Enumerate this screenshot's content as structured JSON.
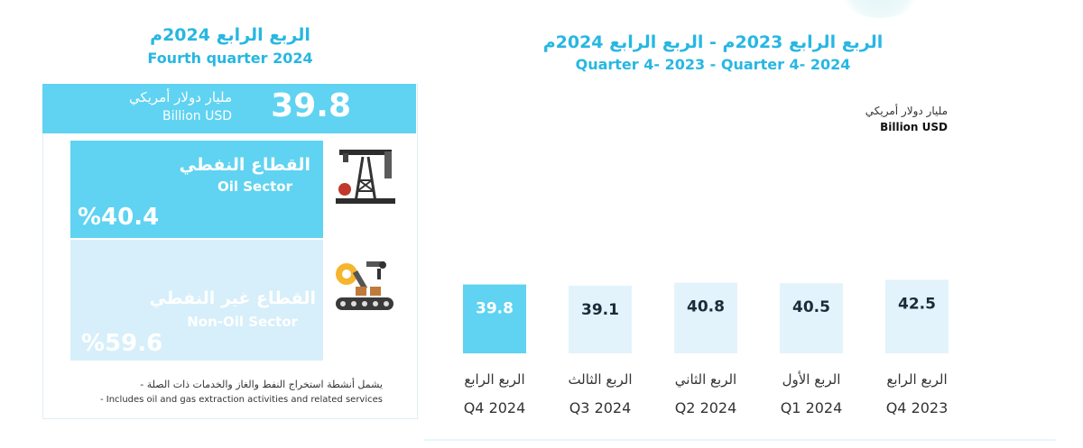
{
  "left_panel": {
    "title_ar": "الربع الرابع 2024م",
    "title_en": "Fourth quarter 2024",
    "total_value": "39.8",
    "total_unit_ar": "مليار دولار أمريكي",
    "total_unit_en": "Billion USD",
    "oil_ar": "القطاع النفطي",
    "oil_en": "Oil Sector",
    "oil_pct": "%40.4",
    "nonoil_ar": "القطاع غير النفطي",
    "nonoil_en": "Non-Oil Sector",
    "nonoil_pct": "%59.6",
    "note_ar": "- يشمل أنشطة استخراج النفط والغاز والخدمات ذات الصلة",
    "note_en": "- Includes oil and gas extraction activities and related services",
    "icons": [
      "oil-derrick-icon",
      "industrial-robot-icon"
    ],
    "colors": {
      "accent": "#5fd3f1",
      "light": "#d6effa",
      "title": "#27b7e2"
    }
  },
  "chart_header": {
    "title_ar": "الربع الرابع 2023م - الربع الرابع 2024م",
    "title_en": "Quarter 4- 2023 - Quarter 4- 2024",
    "unit_ar": "مليار دولار أمريكي",
    "unit_en": "Billion USD"
  },
  "chart_data": {
    "type": "bar",
    "categories": [
      {
        "ar": "الربع الرابع",
        "en": "Q4 2024"
      },
      {
        "ar": "الربع الثالث",
        "en": "Q3 2024"
      },
      {
        "ar": "الربع الثاني",
        "en": "Q2 2024"
      },
      {
        "ar": "الربع الأول",
        "en": "Q1 2024"
      },
      {
        "ar": "الربع الرابع",
        "en": "Q4 2023"
      }
    ],
    "values": [
      39.8,
      39.1,
      40.8,
      40.5,
      42.5
    ],
    "value_labels": [
      "39.8",
      "39.1",
      "40.8",
      "40.5",
      "42.5"
    ],
    "ylabel": "Billion USD",
    "highlight_index": 0,
    "colors": {
      "highlight": "#5fd3f1",
      "normal": "#e3f3fb"
    }
  }
}
